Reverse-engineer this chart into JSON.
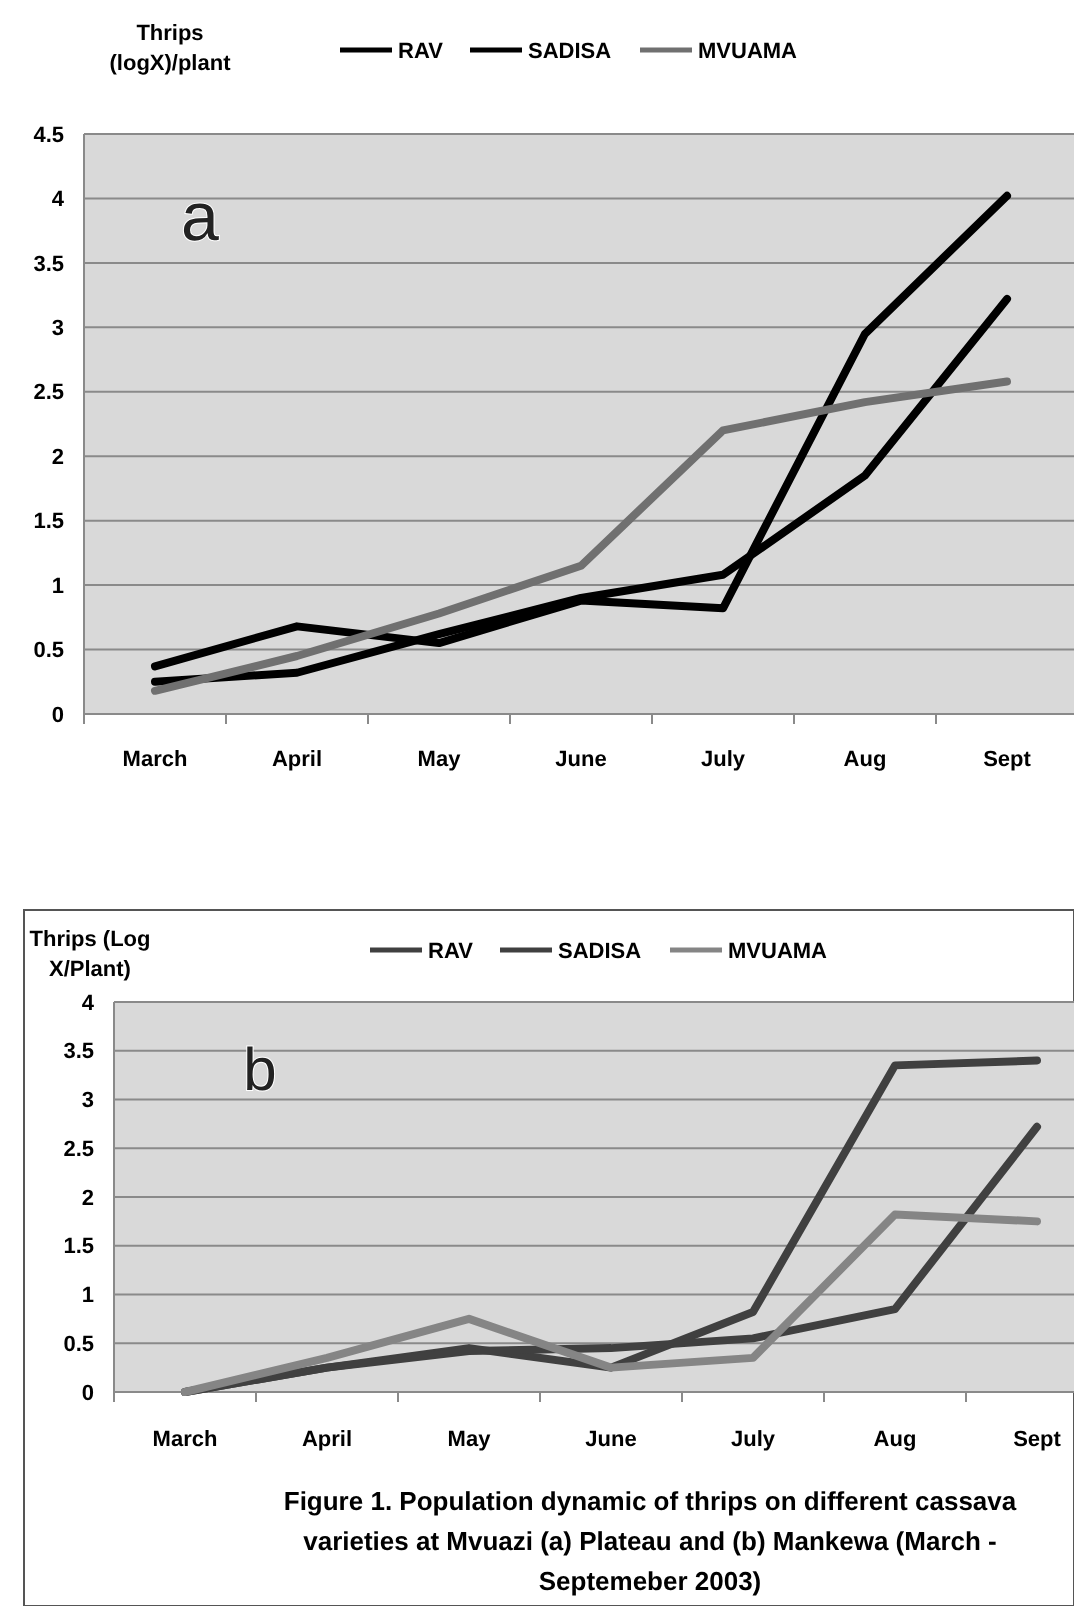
{
  "chart_data": [
    {
      "type": "line",
      "ylabel": "Thrips (logX)/plant",
      "categories": [
        "March",
        "April",
        "May",
        "June",
        "July",
        "Aug",
        "Sept"
      ],
      "ylim": [
        0,
        4.5
      ],
      "yticks": [
        0,
        0.5,
        1,
        1.5,
        2,
        2.5,
        3,
        3.5,
        4,
        4.5
      ],
      "grid": "y",
      "legend": "top",
      "annotations": [
        "a"
      ],
      "series": [
        {
          "name": "RAV",
          "color": "#000000",
          "values": [
            0.37,
            0.68,
            0.55,
            0.88,
            0.82,
            2.95,
            4.02
          ]
        },
        {
          "name": "SADISA",
          "color": "#000000",
          "values": [
            0.25,
            0.32,
            0.62,
            0.9,
            1.08,
            1.85,
            3.22
          ]
        },
        {
          "name": "MVUAMA",
          "color": "#707070",
          "values": [
            0.18,
            0.45,
            0.78,
            1.15,
            2.2,
            2.42,
            2.58
          ]
        }
      ]
    },
    {
      "type": "line",
      "ylabel": "Thrips (Log X/Plant)",
      "categories": [
        "March",
        "April",
        "May",
        "June",
        "July",
        "Aug",
        "Sept"
      ],
      "ylim": [
        0,
        4
      ],
      "yticks": [
        0,
        0.5,
        1,
        1.5,
        2,
        2.5,
        3,
        3.5,
        4
      ],
      "grid": "y",
      "legend": "top",
      "annotations": [
        "b",
        "Figure 1. Population dynamic of thrips on different cassava varieties at Mvuazi (a) Plateau and (b) Mankewa (March - Septemeber 2003)"
      ],
      "series": [
        {
          "name": "RAV",
          "color": "#404040",
          "values": [
            0,
            0.25,
            0.45,
            0.25,
            0.82,
            3.35,
            3.4
          ]
        },
        {
          "name": "SADISA",
          "color": "#404040",
          "values": [
            0,
            0.25,
            0.42,
            0.45,
            0.55,
            0.85,
            2.72
          ]
        },
        {
          "name": "MVUAMA",
          "color": "#858585",
          "values": [
            0,
            0.35,
            0.75,
            0.25,
            0.35,
            1.82,
            1.75
          ]
        }
      ]
    }
  ]
}
